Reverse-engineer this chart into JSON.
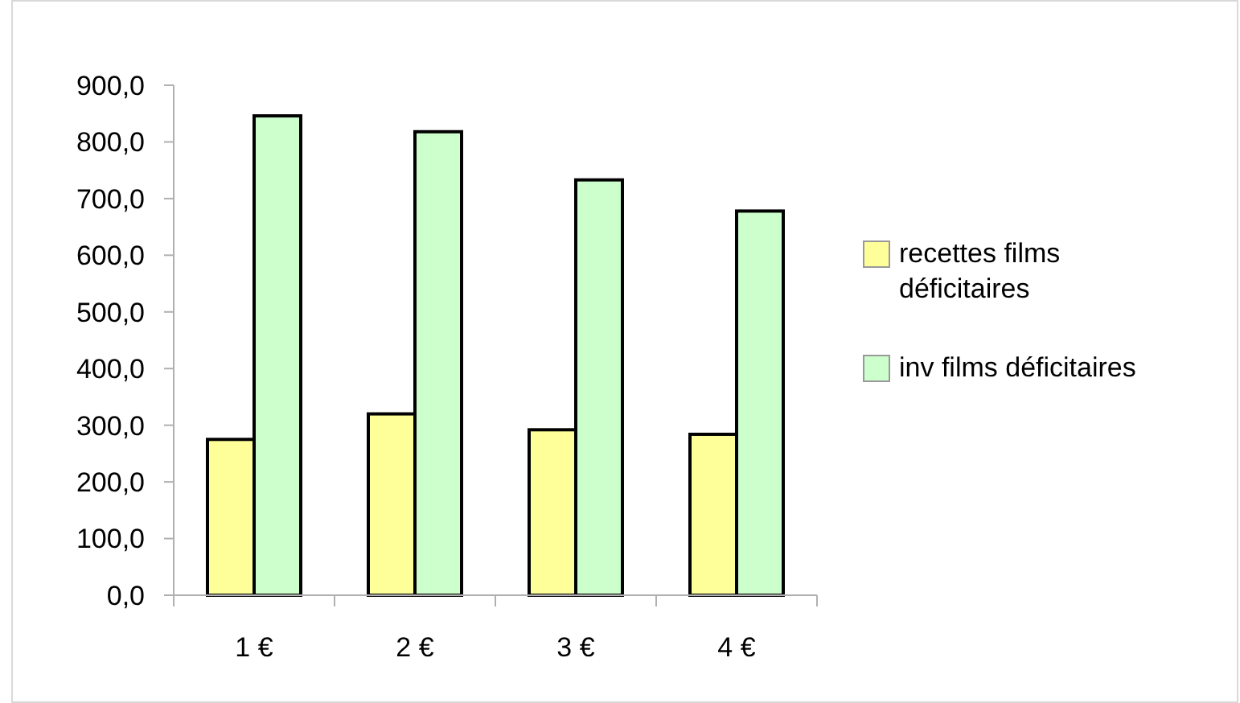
{
  "chart_data": {
    "type": "bar",
    "categories": [
      "1 €",
      "2 €",
      "3 €",
      "4 €"
    ],
    "series": [
      {
        "name": "recettes films déficitaires",
        "color": "#ffff99",
        "values": [
          275,
          320,
          292,
          284
        ]
      },
      {
        "name": "inv films déficitaires",
        "color": "#ccffcc",
        "values": [
          846,
          818,
          733,
          678
        ]
      }
    ],
    "ylim": [
      0,
      900
    ],
    "yticks": [
      {
        "value": 0,
        "label": "0,0"
      },
      {
        "value": 100,
        "label": "100,0"
      },
      {
        "value": 200,
        "label": "200,0"
      },
      {
        "value": 300,
        "label": "300,0"
      },
      {
        "value": 400,
        "label": "400,0"
      },
      {
        "value": 500,
        "label": "500,0"
      },
      {
        "value": 600,
        "label": "600,0"
      },
      {
        "value": 700,
        "label": "700,0"
      },
      {
        "value": 800,
        "label": "800,0"
      },
      {
        "value": 900,
        "label": "900,0"
      }
    ],
    "grid": false,
    "legend": "right"
  }
}
